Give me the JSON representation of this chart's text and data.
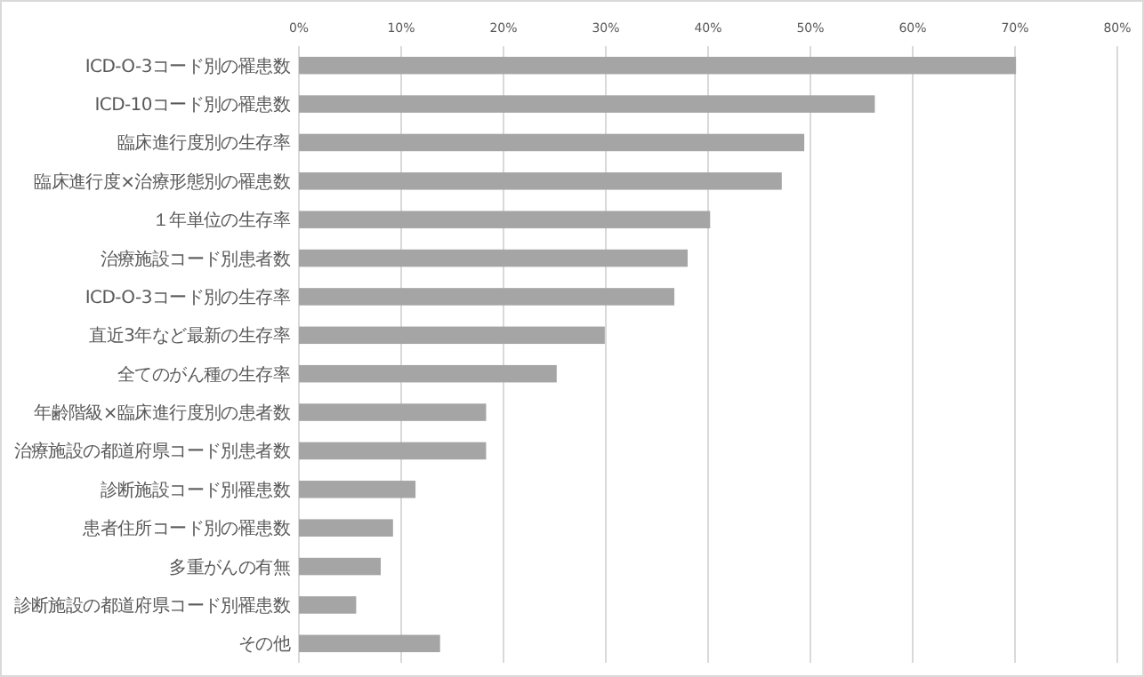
{
  "chart_data": {
    "type": "bar",
    "orientation": "horizontal",
    "color": "#a5a5a5",
    "grid": "x",
    "categories": [
      "ICD-O-3コード別の罹患数",
      "ICD-10コード別の罹患数",
      "臨床進行度別の生存率",
      "臨床進行度×治療形態別の罹患数",
      "１年単位の生存率",
      "治療施設コード別患者数",
      "ICD-O-3コード別の生存率",
      "直近3年など最新の生存率",
      "全てのがん種の生存率",
      "年齢階級×臨床進行度別の患者数",
      "治療施設の都道府県コード別患者数",
      "診断施設コード別罹患数",
      "患者住所コード別の罹患数",
      "多重がんの有無",
      "診断施設の都道府県コード別罹患数",
      "その他"
    ],
    "values": [
      70.1,
      56.3,
      49.4,
      47.2,
      40.2,
      38.0,
      36.7,
      29.9,
      25.2,
      18.3,
      18.3,
      11.4,
      9.2,
      8.0,
      5.6,
      13.8
    ],
    "xlim": [
      0,
      80
    ],
    "xticks": [
      {
        "value": 0,
        "label": "0%"
      },
      {
        "value": 10,
        "label": "10%"
      },
      {
        "value": 20,
        "label": "20%"
      },
      {
        "value": 30,
        "label": "30%"
      },
      {
        "value": 40,
        "label": "40%"
      },
      {
        "value": 50,
        "label": "50%"
      },
      {
        "value": 60,
        "label": "60%"
      },
      {
        "value": 70,
        "label": "70%"
      },
      {
        "value": 80,
        "label": "80%"
      }
    ]
  }
}
